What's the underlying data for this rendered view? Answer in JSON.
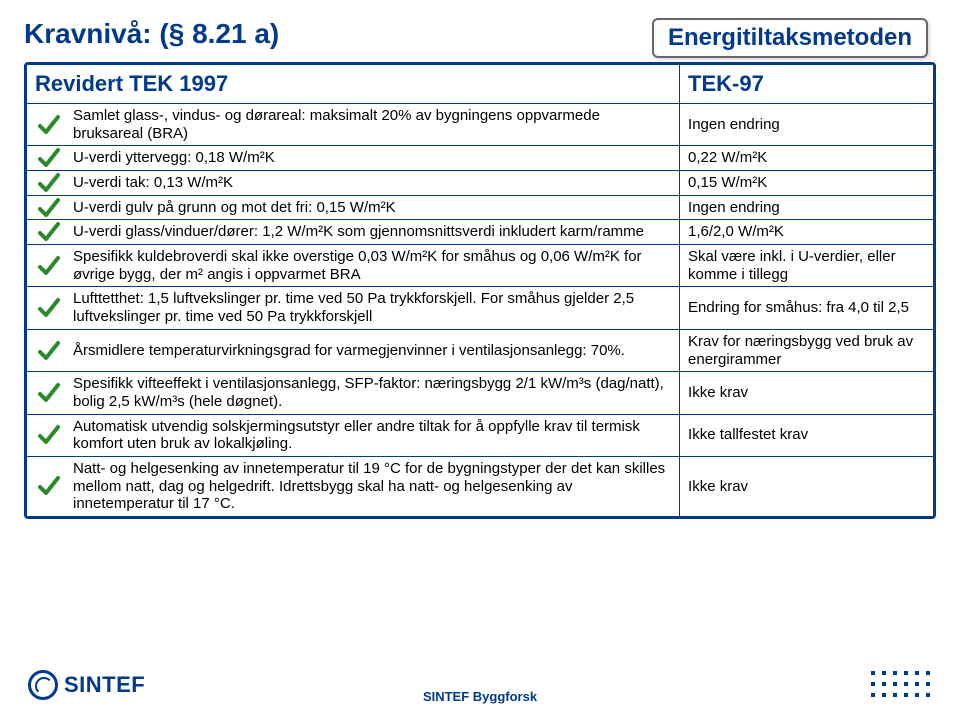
{
  "title": "Kravnivå: (§ 8.21 a)",
  "badge": "Energitiltaksmetoden",
  "table": {
    "header": {
      "left": "Revidert TEK 1997",
      "right": "TEK-97"
    },
    "rows": [
      {
        "left": "Samlet glass-, vindus- og dørareal: maksimalt 20% av bygningens oppvarmede bruksareal (BRA)",
        "right": "Ingen endring"
      },
      {
        "left": "U-verdi yttervegg: 0,18 W/m²K",
        "right": "0,22 W/m²K"
      },
      {
        "left": "U-verdi tak: 0,13 W/m²K",
        "right": "0,15 W/m²K"
      },
      {
        "left": "U-verdi gulv på grunn og mot det fri: 0,15 W/m²K",
        "right": "Ingen endring"
      },
      {
        "left": "U-verdi glass/vinduer/dører: 1,2 W/m²K som gjennomsnittsverdi inkludert karm/ramme",
        "right": "1,6/2,0 W/m²K"
      },
      {
        "left": "Spesifikk kuldebroverdi skal ikke overstige 0,03 W/m²K for småhus og 0,06 W/m²K for øvrige bygg, der m² angis i oppvarmet BRA",
        "right": "Skal være inkl. i U-verdier, eller komme i tillegg"
      },
      {
        "left": "Lufttetthet: 1,5 luftvekslinger pr. time ved 50 Pa trykkforskjell. For småhus gjelder 2,5 luftvekslinger pr. time ved 50 Pa trykkforskjell",
        "right": "Endring for småhus: fra 4,0 til 2,5"
      },
      {
        "left": "Årsmidlere temperaturvirkningsgrad for varmegjenvinner i ventilasjonsanlegg: 70%.",
        "right": "Krav for næringsbygg ved bruk av energirammer"
      },
      {
        "left": "Spesifikk vifteeffekt i ventilasjonsanlegg, SFP-faktor: næringsbygg 2/1 kW/m³s (dag/natt), bolig 2,5 kW/m³s (hele døgnet).",
        "right": "Ikke krav"
      },
      {
        "left": "Automatisk utvendig solskjermingsutstyr eller andre tiltak for å oppfylle krav til termisk komfort uten bruk av lokalkjøling.",
        "right": "Ikke tallfestet krav"
      },
      {
        "left": "Natt- og helgesenking av innetemperatur til 19 °C for de bygningstyper der det kan skilles mellom natt, dag og helgedrift. Idrettsbygg skal ha natt- og helgesenking av innetemperatur til 17 °C.",
        "right": "Ikke krav"
      }
    ]
  },
  "footer": {
    "brand": "SINTEF",
    "center": "SINTEF Byggforsk"
  },
  "colors": {
    "primary": "#003a8c",
    "border": "#003a8c",
    "text": "#000000",
    "check": "#2a8a2a"
  }
}
